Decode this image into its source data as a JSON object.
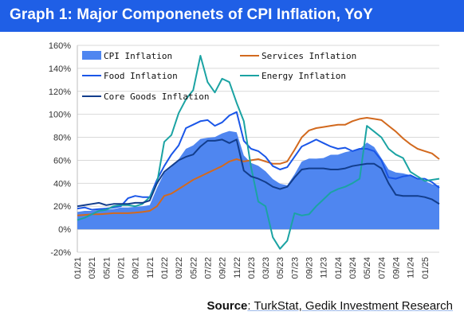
{
  "header": {
    "title": "Graph 1: Major Componenets of CPI Inflation, YoY"
  },
  "source": {
    "label": "Source",
    "text": ": TurkStat, Gedik Investment Research"
  },
  "colors": {
    "header_bg": "#1f5fe6",
    "cpi": "#4f86f0",
    "services": "#d2691e",
    "food": "#1a56e8",
    "energy": "#1ba3a3",
    "core": "#123d8c"
  },
  "chart_data": {
    "type": "line",
    "ylim": [
      -20,
      160
    ],
    "y_ticks": [
      "-20%",
      "0%",
      "20%",
      "40%",
      "60%",
      "80%",
      "100%",
      "120%",
      "140%",
      "160%"
    ],
    "y_tick_values": [
      -20,
      0,
      20,
      40,
      60,
      80,
      100,
      120,
      140,
      160
    ],
    "x_tick_labels": [
      "01/21",
      "03/21",
      "05/21",
      "07/21",
      "09/21",
      "11/21",
      "01/22",
      "03/22",
      "05/22",
      "07/22",
      "09/22",
      "11/22",
      "01/23",
      "03/23",
      "05/23",
      "07/23",
      "09/23",
      "11/23",
      "01/24",
      "03/24",
      "05/24",
      "07/24",
      "09/24",
      "11/24",
      "01/25"
    ],
    "months": [
      "01/21",
      "02/21",
      "03/21",
      "04/21",
      "05/21",
      "06/21",
      "07/21",
      "08/21",
      "09/21",
      "10/21",
      "11/21",
      "12/21",
      "01/22",
      "02/22",
      "03/22",
      "04/22",
      "05/22",
      "06/22",
      "07/22",
      "08/22",
      "09/22",
      "10/22",
      "11/22",
      "12/22",
      "01/23",
      "02/23",
      "03/23",
      "04/23",
      "05/23",
      "06/23",
      "07/23",
      "08/23",
      "09/23",
      "10/23",
      "11/23",
      "12/23",
      "01/24",
      "02/24",
      "03/24",
      "04/24",
      "05/24",
      "06/24",
      "07/24",
      "08/24",
      "09/24",
      "10/24",
      "11/24",
      "12/24",
      "01/25",
      "02/25",
      "03/25"
    ],
    "grid": true,
    "legend": "top-inside",
    "series": [
      {
        "name": "CPI Inflation",
        "style": "area",
        "values": [
          15,
          16,
          16,
          17,
          17,
          17.5,
          19,
          19,
          19.5,
          20,
          21,
          36,
          49,
          54,
          61,
          70,
          73,
          78.6,
          79.6,
          80.2,
          83.4,
          85.5,
          84.4,
          64.3,
          57.7,
          55.2,
          50.5,
          43.7,
          39.6,
          38.2,
          47.8,
          58.9,
          61.5,
          61.4,
          62,
          64.8,
          64.9,
          67.1,
          68.5,
          69.8,
          75.5,
          71.6,
          61.8,
          52,
          49.4,
          48.6,
          47.1,
          44.4,
          42.1,
          39.1,
          38.1
        ]
      },
      {
        "name": "Services Inflation",
        "style": "line",
        "values": [
          12,
          12.5,
          13,
          13,
          13.5,
          14,
          14,
          14,
          14.5,
          15,
          16,
          20,
          29,
          31,
          35,
          39,
          43,
          46,
          49,
          52,
          55,
          59,
          61,
          59,
          60,
          61,
          59,
          57,
          57,
          59,
          69,
          80,
          86,
          88,
          89,
          90,
          91,
          91,
          94,
          96,
          97,
          96,
          95,
          90,
          85,
          79,
          74,
          70,
          68,
          66,
          61
        ]
      },
      {
        "name": "Food Inflation",
        "style": "line",
        "values": [
          18,
          19,
          17,
          17.5,
          18,
          19,
          20,
          27,
          29,
          28,
          28,
          43,
          55,
          65,
          73,
          88,
          91,
          94,
          95,
          90,
          93,
          99,
          102,
          77,
          70,
          68,
          63,
          55,
          52,
          54,
          63,
          72,
          75,
          78,
          75,
          72,
          70,
          71,
          68,
          70,
          70,
          68,
          60,
          45,
          44,
          46,
          47,
          44,
          44,
          41,
          36
        ]
      },
      {
        "name": "Energy Inflation",
        "style": "line",
        "values": [
          8,
          10,
          13,
          16,
          17,
          20,
          21,
          21,
          20,
          22,
          28,
          40,
          76,
          82,
          101,
          113,
          121,
          151,
          128,
          119,
          131,
          128,
          110,
          94,
          54,
          24,
          20,
          -7,
          -17,
          -10,
          14,
          12,
          13,
          20,
          26,
          32,
          35,
          37,
          40,
          44,
          90,
          85,
          80,
          70,
          65,
          62,
          50,
          46,
          42,
          43,
          44
        ]
      },
      {
        "name": "Core Goods Inflation",
        "style": "line",
        "values": [
          20,
          21,
          22,
          23,
          21,
          22,
          22,
          22,
          23,
          23,
          25,
          40,
          50,
          55,
          60,
          63,
          65,
          72,
          77,
          77,
          78,
          75,
          78,
          51,
          46,
          44,
          41,
          37,
          35,
          37,
          45,
          52,
          53,
          53,
          53,
          52,
          52,
          53,
          55,
          56,
          57,
          57,
          53,
          40,
          30,
          29,
          29,
          29,
          28,
          26,
          22
        ]
      }
    ]
  }
}
